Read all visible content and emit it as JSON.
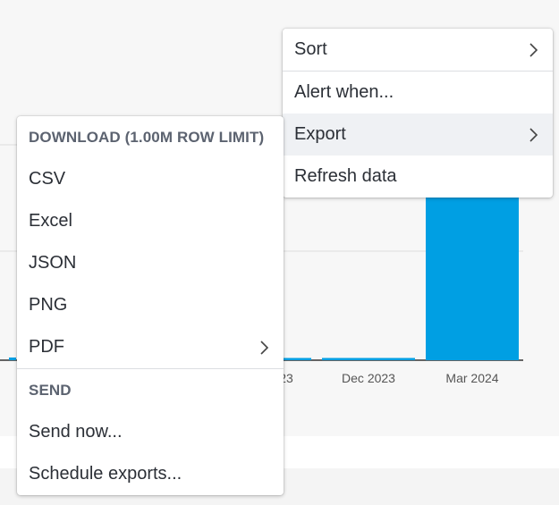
{
  "main_menu": {
    "items": [
      {
        "label": "Sort",
        "has_submenu": true
      },
      {
        "label": "Alert when...",
        "has_submenu": false
      },
      {
        "label": "Export",
        "has_submenu": true,
        "active": true
      },
      {
        "label": "Refresh data",
        "has_submenu": false
      }
    ]
  },
  "export_menu": {
    "download_header": "DOWNLOAD (1.00M ROW LIMIT)",
    "download_items": [
      {
        "label": "CSV"
      },
      {
        "label": "Excel"
      },
      {
        "label": "JSON"
      },
      {
        "label": "PNG"
      },
      {
        "label": "PDF",
        "has_submenu": true
      }
    ],
    "send_header": "SEND",
    "send_items": [
      {
        "label": "Send now..."
      },
      {
        "label": "Schedule exports..."
      }
    ]
  },
  "chart_data": {
    "type": "bar",
    "categories": [
      "23",
      "Dec 2023",
      "Mar 2024"
    ],
    "x_tick_labels": [
      "23",
      "Dec 2023",
      "Mar 2024"
    ],
    "values": [
      1,
      1,
      100
    ],
    "bar_color": "#009fe3"
  },
  "colors": {
    "accent": "#009fe3",
    "active_item_bg": "#eff1f4"
  }
}
